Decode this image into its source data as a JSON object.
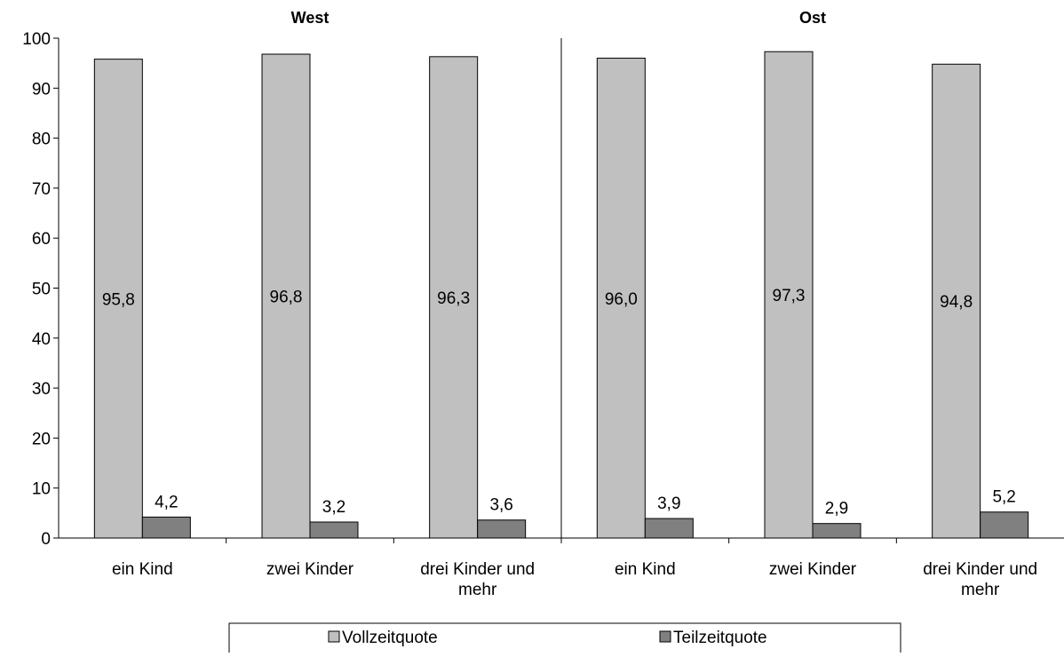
{
  "chart_data": {
    "type": "bar",
    "groups": [
      {
        "title": "West",
        "categories": [
          "ein Kind",
          "zwei Kinder",
          "drei Kinder und mehr"
        ]
      },
      {
        "title": "Ost",
        "categories": [
          "ein Kind",
          "zwei Kinder",
          "drei Kinder und mehr"
        ]
      }
    ],
    "categories": [
      "ein Kind",
      "zwei Kinder",
      "drei Kinder und mehr",
      "ein Kind",
      "zwei Kinder",
      "drei Kinder und mehr"
    ],
    "series": [
      {
        "name": "Vollzeitquote",
        "color": "#c0c0c0",
        "values": [
          95.8,
          96.8,
          96.3,
          96.0,
          97.3,
          94.8
        ],
        "labels": [
          "95,8",
          "96,8",
          "96,3",
          "96,0",
          "97,3",
          "94,8"
        ]
      },
      {
        "name": "Teilzeitquote",
        "color": "#808080",
        "values": [
          4.2,
          3.2,
          3.6,
          3.9,
          2.9,
          5.2
        ],
        "labels": [
          "4,2",
          "3,2",
          "3,6",
          "3,9",
          "2,9",
          "5,2"
        ]
      }
    ],
    "yticks": [
      "0",
      "10",
      "20",
      "30",
      "40",
      "50",
      "60",
      "70",
      "80",
      "90",
      "100"
    ],
    "ylim": [
      0,
      100
    ],
    "title": "",
    "xlabel": "",
    "ylabel": "",
    "grid": false,
    "legend_position": "bottom"
  }
}
